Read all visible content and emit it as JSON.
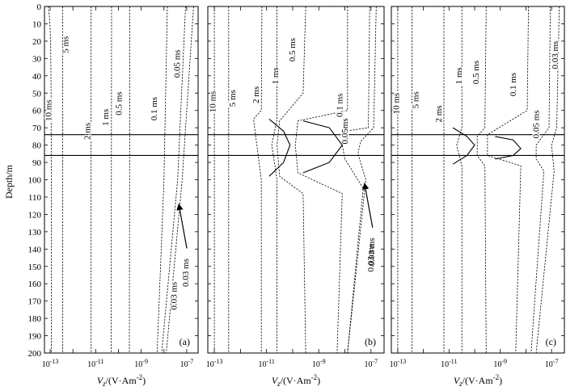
{
  "chart_data": {
    "type": "line",
    "y_axis": {
      "label": "Depth/m",
      "range": [
        0,
        200
      ],
      "inverted": true,
      "ticks": [
        "0",
        "10",
        "20",
        "30",
        "40",
        "50",
        "60",
        "70",
        "80",
        "90",
        "100",
        "110",
        "120",
        "130",
        "140",
        "150",
        "160",
        "170",
        "180",
        "190",
        "200"
      ]
    },
    "x_axis": {
      "label_main": "V",
      "label_sub": "z",
      "label_rest": "/(V·Am",
      "label_sup": "-2",
      "label_end": ")",
      "scale": "log",
      "range_log10": [
        -13.25,
        -6.5
      ],
      "ticks": [
        {
          "base": "10",
          "exp": "-13",
          "log": -13
        },
        {
          "base": "10",
          "exp": "-11",
          "log": -11
        },
        {
          "base": "10",
          "exp": "-9",
          "log": -9
        },
        {
          "base": "10",
          "exp": "-7",
          "log": -7
        }
      ]
    },
    "layer_depths": [
      74,
      86
    ],
    "panels": [
      {
        "label": "(a)",
        "curves": [
          {
            "name": "10 ms",
            "label_log": -12.95,
            "label_depth": 60,
            "points": [
              [
                -13.08,
                0
              ],
              [
                -13.02,
                8
              ],
              [
                -12.98,
                20
              ],
              [
                -12.96,
                50
              ],
              [
                -12.95,
                100
              ],
              [
                -12.95,
                200
              ]
            ]
          },
          {
            "name": "5 ms",
            "label_log": -12.2,
            "label_depth": 22,
            "points": [
              [
                -12.45,
                0
              ],
              [
                -12.45,
                200
              ]
            ]
          },
          {
            "name": "2 ms",
            "label_log": -11.25,
            "label_depth": 72,
            "points": [
              [
                -11.2,
                0
              ],
              [
                -11.2,
                200
              ]
            ]
          },
          {
            "name": "1 ms",
            "label_log": -10.45,
            "label_depth": 64,
            "points": [
              [
                -10.3,
                0
              ],
              [
                -10.32,
                200
              ]
            ]
          },
          {
            "name": "0.5 ms",
            "label_log": -9.85,
            "label_depth": 56,
            "points": [
              [
                -9.5,
                0
              ],
              [
                -9.52,
                200
              ]
            ]
          },
          {
            "name": "0.1 ms",
            "label_log": -8.3,
            "label_depth": 59,
            "points": [
              [
                -7.85,
                0
              ],
              [
                -8.0,
                100
              ],
              [
                -8.3,
                200
              ]
            ]
          },
          {
            "name": "0.05 ms",
            "label_log": -7.3,
            "label_depth": 33,
            "points": [
              [
                -7.05,
                0
              ],
              [
                -7.4,
                100
              ],
              [
                -8.1,
                200
              ]
            ]
          },
          {
            "name": "0.03 ms",
            "label_log": -7.45,
            "label_depth": 167,
            "points": [
              [
                -6.7,
                0
              ],
              [
                -7.2,
                100
              ],
              [
                -7.9,
                200
              ]
            ]
          }
        ],
        "annotation": {
          "text": "0.03 ms",
          "arrow_to_log": -7.35,
          "arrow_to_depth": 114
        }
      },
      {
        "label": "(b)",
        "curves": [
          {
            "name": "10 ms",
            "label_log": -12.95,
            "label_depth": 55,
            "points": [
              [
                -13.0,
                0
              ],
              [
                -13.0,
                200
              ]
            ]
          },
          {
            "name": "5 ms",
            "label_log": -12.2,
            "label_depth": 53,
            "points": [
              [
                -12.45,
                0
              ],
              [
                -12.45,
                200
              ]
            ]
          },
          {
            "name": "2 ms",
            "label_log": -11.3,
            "label_depth": 51,
            "points": [
              [
                -11.18,
                0
              ],
              [
                -11.2,
                60
              ],
              [
                -11.5,
                65
              ],
              [
                -11.2,
                100
              ],
              [
                -11.2,
                200
              ]
            ]
          },
          {
            "name": "1 ms",
            "label_log": -10.55,
            "label_depth": 40,
            "points": [
              [
                -10.6,
                0
              ],
              [
                -10.6,
                65
              ],
              [
                -10.8,
                80
              ],
              [
                -10.6,
                100
              ],
              [
                -10.6,
                200
              ]
            ]
          },
          {
            "name": "0.5 ms",
            "label_log": -9.9,
            "label_depth": 25,
            "points": [
              [
                -9.5,
                0
              ],
              [
                -9.6,
                50
              ],
              [
                -10.5,
                66
              ],
              [
                -10.6,
                80
              ],
              [
                -10.5,
                98
              ],
              [
                -9.6,
                108
              ],
              [
                -9.5,
                200
              ]
            ]
          },
          {
            "name": "0.1 ms",
            "label_log": -8.1,
            "label_depth": 57,
            "points": [
              [
                -7.9,
                0
              ],
              [
                -7.9,
                60
              ],
              [
                -9.8,
                66
              ],
              [
                -9.9,
                80
              ],
              [
                -9.8,
                96
              ],
              [
                -8.1,
                108
              ],
              [
                -8.3,
                200
              ]
            ]
          },
          {
            "name": "0.05ms",
            "label_log": -7.9,
            "label_depth": 72,
            "points": [
              [
                -7.05,
                0
              ],
              [
                -7.1,
                70
              ],
              [
                -8.0,
                72
              ],
              [
                -8.1,
                80
              ],
              [
                -8.0,
                88
              ],
              [
                -7.3,
                105
              ],
              [
                -7.9,
                200
              ]
            ]
          },
          {
            "name": "0.03 ms",
            "label_log": -6.9,
            "label_depth": 145,
            "points": [
              [
                -6.8,
                0
              ],
              [
                -6.9,
                70
              ],
              [
                -7.4,
                78
              ],
              [
                -7.5,
                85
              ],
              [
                -7.2,
                100
              ],
              [
                -7.9,
                200
              ]
            ]
          }
        ],
        "solid_bumps": [
          {
            "points": [
              [
                -10.9,
                65
              ],
              [
                -10.35,
                72
              ],
              [
                -10.1,
                80
              ],
              [
                -10.35,
                90
              ],
              [
                -10.9,
                98
              ]
            ]
          },
          {
            "points": [
              [
                -9.6,
                66
              ],
              [
                -8.6,
                70
              ],
              [
                -8.1,
                80
              ],
              [
                -8.6,
                90
              ],
              [
                -9.6,
                96
              ]
            ]
          }
        ],
        "annotation": {
          "text": "0.03 ms",
          "arrow_to_log": -7.25,
          "arrow_to_depth": 102
        }
      },
      {
        "label": "(c)",
        "curves": [
          {
            "name": "10 ms",
            "label_log": -12.95,
            "label_depth": 56,
            "points": [
              [
                -13.0,
                0
              ],
              [
                -13.0,
                200
              ]
            ]
          },
          {
            "name": "5 ms",
            "label_log": -12.2,
            "label_depth": 54,
            "points": [
              [
                -12.45,
                0
              ],
              [
                -12.45,
                200
              ]
            ]
          },
          {
            "name": "2 ms",
            "label_log": -11.3,
            "label_depth": 62,
            "points": [
              [
                -11.2,
                0
              ],
              [
                -11.2,
                200
              ]
            ]
          },
          {
            "name": "1 ms",
            "label_log": -10.5,
            "label_depth": 40,
            "points": [
              [
                -10.5,
                0
              ],
              [
                -10.5,
                70
              ],
              [
                -10.7,
                80
              ],
              [
                -10.5,
                92
              ],
              [
                -10.5,
                200
              ]
            ]
          },
          {
            "name": "0.5 ms",
            "label_log": -9.85,
            "label_depth": 38,
            "points": [
              [
                -9.55,
                0
              ],
              [
                -9.6,
                70
              ],
              [
                -9.9,
                75
              ],
              [
                -9.9,
                86
              ],
              [
                -9.6,
                92
              ],
              [
                -9.55,
                200
              ]
            ]
          },
          {
            "name": "0.1 ms",
            "label_log": -8.4,
            "label_depth": 45,
            "points": [
              [
                -7.9,
                0
              ],
              [
                -7.95,
                60
              ],
              [
                -9.5,
                74
              ],
              [
                -9.5,
                86
              ],
              [
                -8.2,
                92
              ],
              [
                -8.4,
                200
              ]
            ]
          },
          {
            "name": "0.05 ms",
            "label_log": -7.5,
            "label_depth": 68,
            "points": [
              [
                -7.05,
                0
              ],
              [
                -7.1,
                70
              ],
              [
                -7.6,
                80
              ],
              [
                -7.6,
                88
              ],
              [
                -7.3,
                95
              ],
              [
                -7.8,
                200
              ]
            ]
          },
          {
            "name": "0.03 ms",
            "label_log": -6.75,
            "label_depth": 28,
            "points": [
              [
                -6.7,
                0
              ],
              [
                -6.8,
                70
              ],
              [
                -7.0,
                80
              ],
              [
                -6.9,
                95
              ],
              [
                -7.6,
                200
              ]
            ]
          }
        ],
        "solid_bumps": [
          {
            "points": [
              [
                -10.85,
                70
              ],
              [
                -10.3,
                75
              ],
              [
                -10.0,
                80
              ],
              [
                -10.3,
                86
              ],
              [
                -10.85,
                91
              ]
            ]
          },
          {
            "points": [
              [
                -9.2,
                75
              ],
              [
                -8.5,
                77
              ],
              [
                -8.2,
                82
              ],
              [
                -8.5,
                86
              ],
              [
                -9.2,
                88
              ]
            ]
          }
        ]
      }
    ]
  }
}
